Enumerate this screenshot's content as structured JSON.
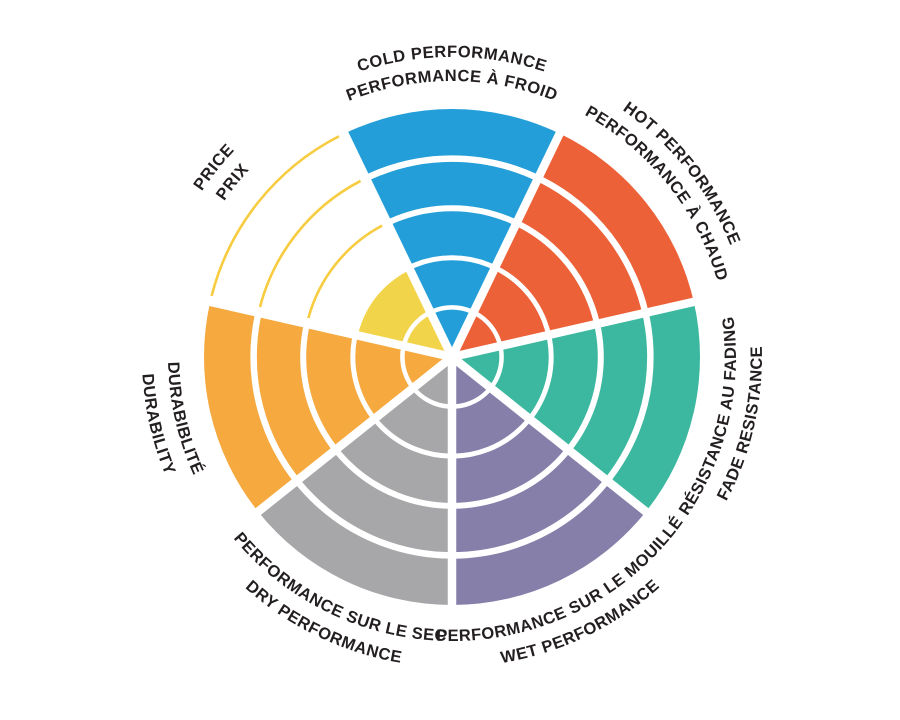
{
  "page": {
    "background": "#FFFFFF",
    "label_color": "#231F20",
    "separator_color": "#FFFFFF"
  },
  "chart_data": {
    "type": "polar-sector-rating",
    "rings_total": 5,
    "grid": "concentric ring separators, radial sector separators",
    "legend_position": "labels curved around outside of wheel, bilingual (English outer line, French inner line)",
    "categories": [
      {
        "label_en": "COLD PERFORMANCE",
        "label_fr": "PERFORMANCE À FROID",
        "value": 5,
        "color": "#239ED8"
      },
      {
        "label_en": "HOT PERFORMANCE",
        "label_fr": "PERFORMANCE À CHAUD",
        "value": 5,
        "color": "#EC6137"
      },
      {
        "label_en": "FADE RESISTANCE",
        "label_fr": "RÉSISTANCE AU FADING",
        "value": 5,
        "color": "#3BB89F"
      },
      {
        "label_en": "WET PERFORMANCE",
        "label_fr": "PERFORMANCE SUR LE MOUILLÉ",
        "value": 5,
        "color": "#867FA9"
      },
      {
        "label_en": "DRY PERFORMANCE",
        "label_fr": "PERFORMANCE SUR LE SEC",
        "value": 5,
        "color": "#A7A7A9"
      },
      {
        "label_en": "DURABILITY",
        "label_fr": "DURABIBLITÉ",
        "value": 5,
        "color": "#F5A93F"
      },
      {
        "label_en": "PRICE",
        "label_fr": "PRIX",
        "value": 2,
        "color": "#F2D44B",
        "empty_ring_arc_color": "#F7CC40"
      }
    ]
  }
}
